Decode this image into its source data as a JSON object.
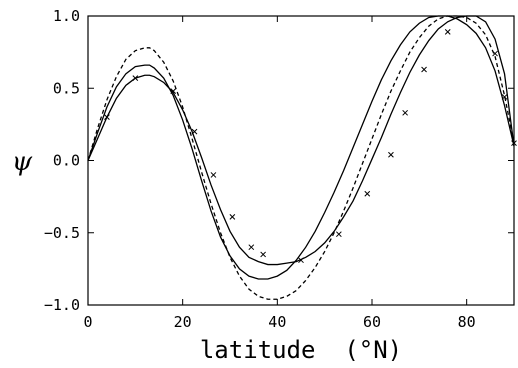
{
  "chart_data": {
    "type": "line",
    "xlabel": "latitude  (°N)",
    "ylabel": "ψ",
    "xlim": [
      0,
      90
    ],
    "ylim": [
      -1.0,
      1.0
    ],
    "xticks": [
      0,
      20,
      40,
      60,
      80
    ],
    "xtick_labels": [
      "0",
      "20",
      "40",
      "60",
      "80"
    ],
    "yticks": [
      -1.0,
      -0.5,
      0.0,
      0.5,
      1.0
    ],
    "ytick_labels": [
      "−1.0",
      "−0.5",
      "0.0",
      "0.5",
      "1.0"
    ],
    "grid": false,
    "series": [
      {
        "style": "dashed",
        "x": [
          0,
          2,
          4,
          6,
          8,
          10,
          12,
          13,
          14,
          16,
          18,
          20,
          22,
          24,
          26,
          28,
          30,
          32,
          34,
          36,
          38,
          40,
          42,
          44,
          46,
          48,
          50,
          52,
          54,
          56,
          58,
          60,
          62,
          64,
          66,
          68,
          70,
          72,
          74,
          76,
          78,
          80,
          82,
          84,
          86,
          88,
          90
        ],
        "y": [
          0.0,
          0.22,
          0.42,
          0.58,
          0.7,
          0.76,
          0.78,
          0.78,
          0.76,
          0.68,
          0.55,
          0.37,
          0.15,
          -0.08,
          -0.3,
          -0.5,
          -0.67,
          -0.8,
          -0.89,
          -0.94,
          -0.96,
          -0.96,
          -0.94,
          -0.9,
          -0.83,
          -0.74,
          -0.63,
          -0.5,
          -0.35,
          -0.19,
          -0.02,
          0.15,
          0.32,
          0.48,
          0.62,
          0.75,
          0.85,
          0.93,
          0.98,
          1.0,
          1.0,
          0.99,
          0.95,
          0.87,
          0.72,
          0.45,
          0.12
        ]
      },
      {
        "style": "solid",
        "x": [
          0,
          2,
          4,
          6,
          8,
          10,
          12,
          13,
          14,
          16,
          18,
          20,
          22,
          24,
          26,
          28,
          30,
          32,
          34,
          36,
          38,
          40,
          42,
          44,
          46,
          48,
          50,
          52,
          54,
          56,
          58,
          60,
          62,
          64,
          66,
          68,
          70,
          72,
          74,
          76,
          78,
          80,
          82,
          84,
          86,
          88,
          90
        ],
        "y": [
          0.0,
          0.19,
          0.37,
          0.51,
          0.6,
          0.65,
          0.66,
          0.66,
          0.64,
          0.57,
          0.45,
          0.28,
          0.08,
          -0.14,
          -0.35,
          -0.53,
          -0.66,
          -0.75,
          -0.8,
          -0.82,
          -0.82,
          -0.8,
          -0.76,
          -0.69,
          -0.6,
          -0.49,
          -0.36,
          -0.22,
          -0.07,
          0.09,
          0.25,
          0.41,
          0.56,
          0.69,
          0.8,
          0.89,
          0.95,
          0.99,
          1.0,
          1.0,
          0.98,
          0.94,
          0.88,
          0.78,
          0.62,
          0.38,
          0.1
        ]
      },
      {
        "style": "solid-markers",
        "x": [
          0,
          2,
          4,
          6,
          8,
          10,
          12,
          13,
          14,
          16,
          18,
          20,
          22,
          24,
          26,
          28,
          30,
          32,
          34,
          36,
          38,
          40,
          42,
          44,
          46,
          48,
          50,
          52,
          54,
          56,
          58,
          60,
          62,
          64,
          66,
          68,
          70,
          72,
          74,
          76,
          78,
          80,
          82,
          84,
          86,
          88,
          90
        ],
        "y": [
          0.0,
          0.15,
          0.3,
          0.43,
          0.52,
          0.57,
          0.59,
          0.59,
          0.58,
          0.54,
          0.47,
          0.35,
          0.2,
          0.02,
          -0.17,
          -0.34,
          -0.49,
          -0.6,
          -0.67,
          -0.7,
          -0.72,
          -0.72,
          -0.71,
          -0.7,
          -0.67,
          -0.63,
          -0.57,
          -0.49,
          -0.39,
          -0.28,
          -0.14,
          0.01,
          0.16,
          0.32,
          0.47,
          0.61,
          0.73,
          0.83,
          0.91,
          0.96,
          0.99,
          1.0,
          1.0,
          0.96,
          0.84,
          0.6,
          0.1
        ],
        "markers_x": [
          4,
          10,
          18,
          22.5,
          26.5,
          30.5,
          34.5,
          37,
          45,
          53,
          59,
          64,
          67,
          71,
          76,
          86,
          88,
          90
        ],
        "markers_y": [
          0.3,
          0.57,
          0.48,
          0.2,
          -0.1,
          -0.39,
          -0.6,
          -0.65,
          -0.69,
          -0.51,
          -0.23,
          0.04,
          0.33,
          0.63,
          0.89,
          0.74,
          0.44,
          0.12
        ]
      }
    ]
  }
}
